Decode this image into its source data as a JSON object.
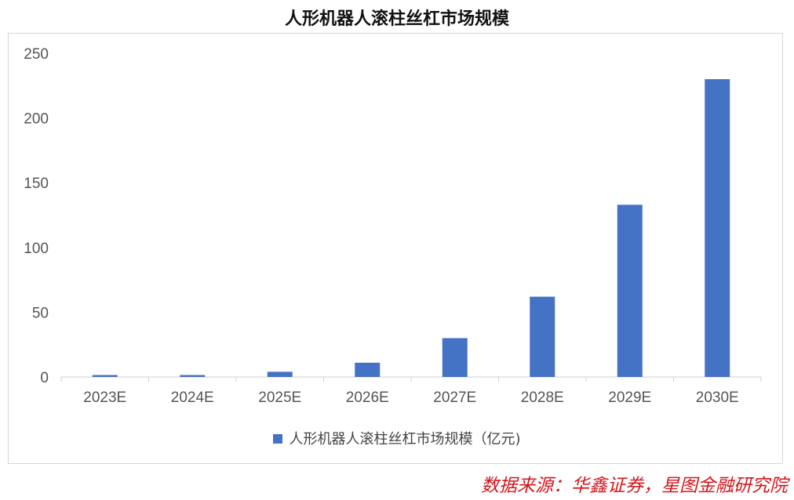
{
  "chart_data": {
    "type": "bar",
    "title": "人形机器人滚柱丝杠市场规模",
    "categories": [
      "2023E",
      "2024E",
      "2025E",
      "2026E",
      "2027E",
      "2028E",
      "2029E",
      "2030E"
    ],
    "series": [
      {
        "name": "人形机器人滚柱丝杠市场规模（亿元)",
        "values": [
          1.5,
          1.5,
          4,
          11,
          30,
          62,
          133,
          230
        ],
        "color": "#4472C4"
      }
    ],
    "ylim": [
      0,
      250
    ],
    "yticks": [
      "0",
      "50",
      "100",
      "150",
      "200",
      "250"
    ],
    "grid": false,
    "legend_position": "bottom"
  },
  "source": "数据来源：华鑫证券，星图金融研究院"
}
